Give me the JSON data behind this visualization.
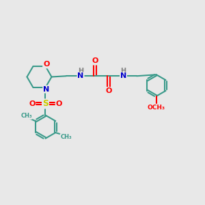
{
  "bg_color": "#e8e8e8",
  "bond_color": "#3a9a8a",
  "O_color": "#ff0000",
  "N_color": "#0000cc",
  "S_color": "#cccc00",
  "H_color": "#808080",
  "line_width": 1.5,
  "figsize": [
    3.0,
    3.0
  ],
  "dpi": 100,
  "xlim": [
    0,
    12
  ],
  "ylim": [
    0,
    12
  ]
}
